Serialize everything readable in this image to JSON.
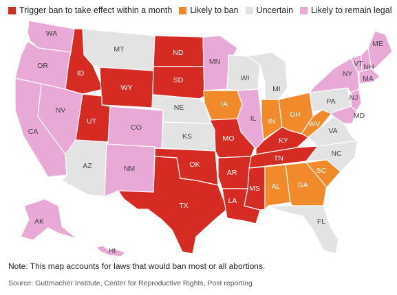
{
  "colors": {
    "trigger": "#d62b22",
    "likely_ban": "#f08a2b",
    "uncertain": "#e3e3e3",
    "remain_legal": "#e8a9d6"
  },
  "legend": {
    "trigger": "Trigger ban to take effect within a month",
    "likely_ban": "Likely to ban",
    "uncertain": "Uncertain",
    "remain_legal": "Likely to remain legal"
  },
  "states": {
    "WA": {
      "label": "WA",
      "status": "remain_legal"
    },
    "OR": {
      "label": "OR",
      "status": "remain_legal"
    },
    "CA": {
      "label": "CA",
      "status": "remain_legal"
    },
    "NV": {
      "label": "NV",
      "status": "remain_legal"
    },
    "ID": {
      "label": "ID",
      "status": "trigger"
    },
    "MT": {
      "label": "MT",
      "status": "uncertain"
    },
    "WY": {
      "label": "WY",
      "status": "trigger"
    },
    "UT": {
      "label": "UT",
      "status": "trigger"
    },
    "AZ": {
      "label": "AZ",
      "status": "uncertain"
    },
    "CO": {
      "label": "CO",
      "status": "remain_legal"
    },
    "NM": {
      "label": "NM",
      "status": "remain_legal"
    },
    "ND": {
      "label": "ND",
      "status": "trigger"
    },
    "SD": {
      "label": "SD",
      "status": "trigger"
    },
    "NE": {
      "label": "NE",
      "status": "uncertain"
    },
    "KS": {
      "label": "KS",
      "status": "uncertain"
    },
    "OK": {
      "label": "OK",
      "status": "trigger"
    },
    "TX": {
      "label": "TX",
      "status": "trigger"
    },
    "MN": {
      "label": "MN",
      "status": "remain_legal"
    },
    "IA": {
      "label": "IA",
      "status": "likely_ban"
    },
    "MO": {
      "label": "MO",
      "status": "trigger"
    },
    "AR": {
      "label": "AR",
      "status": "trigger"
    },
    "LA": {
      "label": "LA",
      "status": "trigger"
    },
    "WI": {
      "label": "WI",
      "status": "uncertain"
    },
    "IL": {
      "label": "IL",
      "status": "remain_legal"
    },
    "MI": {
      "label": "MI",
      "status": "uncertain"
    },
    "IN": {
      "label": "IN",
      "status": "likely_ban"
    },
    "OH": {
      "label": "OH",
      "status": "likely_ban"
    },
    "KY": {
      "label": "KY",
      "status": "trigger"
    },
    "TN": {
      "label": "TN",
      "status": "trigger"
    },
    "MS": {
      "label": "MS",
      "status": "trigger"
    },
    "AL": {
      "label": "AL",
      "status": "likely_ban"
    },
    "GA": {
      "label": "GA",
      "status": "likely_ban"
    },
    "FL": {
      "label": "FL",
      "status": "uncertain"
    },
    "SC": {
      "label": "SC",
      "status": "likely_ban"
    },
    "NC": {
      "label": "NC",
      "status": "uncertain"
    },
    "VA": {
      "label": "VA",
      "status": "uncertain"
    },
    "WV": {
      "label": "WV",
      "status": "likely_ban"
    },
    "PA": {
      "label": "PA",
      "status": "uncertain"
    },
    "NY": {
      "label": "NY",
      "status": "remain_legal"
    },
    "VT": {
      "label": "VT",
      "status": "remain_legal"
    },
    "NH": {
      "label": "NH",
      "status": "remain_legal"
    },
    "ME": {
      "label": "ME",
      "status": "remain_legal"
    },
    "MA": {
      "label": "MA",
      "status": "remain_legal"
    },
    "NJ": {
      "label": "NJ",
      "status": "remain_legal"
    },
    "MD": {
      "label": "MD",
      "status": "remain_legal"
    },
    "AK": {
      "label": "AK",
      "status": "remain_legal"
    },
    "HI": {
      "label": "HI",
      "status": "remain_legal"
    }
  },
  "note": "Note: This map accounts for laws that would ban most or all abortions.",
  "source": "Source: Guttmacher Institute, Center for Reproductive Rights, Post reporting"
}
